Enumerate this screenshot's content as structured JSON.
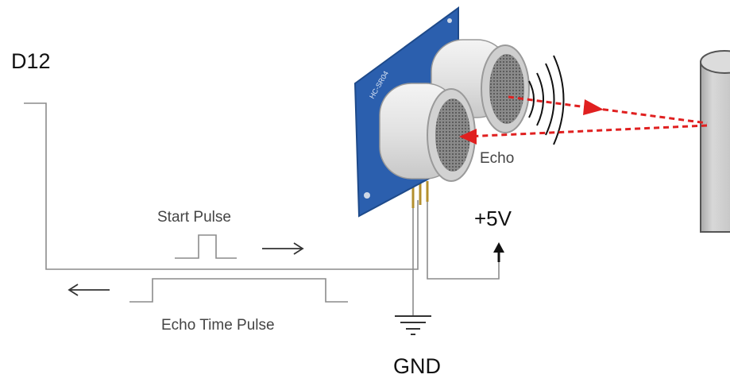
{
  "labels": {
    "pin": "D12",
    "start_pulse": "Start Pulse",
    "echo_time_pulse": "Echo Time Pulse",
    "echo": "Echo",
    "vcc": "+5V",
    "gnd": "GND"
  },
  "colors": {
    "wire": "#8c8c8c",
    "sensor_board": "#2b5fae",
    "echo_beam": "#e02020",
    "transducer": "#e6e6e6",
    "mesh": "#6d6d6d",
    "obstacle": "#bfbfbf"
  },
  "icons": [
    "right-arrow-icon",
    "left-arrow-icon",
    "up-arrow-icon",
    "ground-icon",
    "sound-wave-icon"
  ]
}
